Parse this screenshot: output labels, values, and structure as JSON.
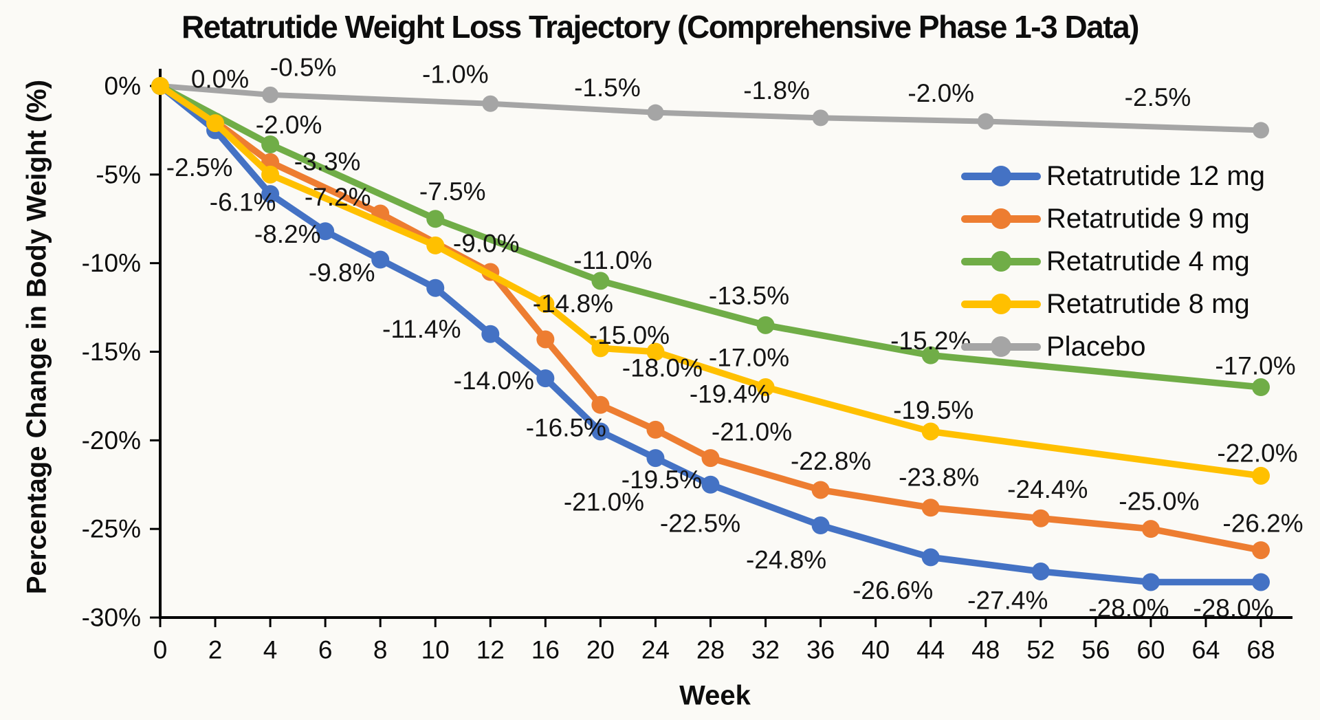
{
  "title": "Retatrutide Weight Loss Trajectory (Comprehensive Phase 1-3 Data)",
  "x_axis": {
    "label": "Week",
    "ticks": [
      "0",
      "2",
      "4",
      "6",
      "8",
      "10",
      "12",
      "16",
      "20",
      "24",
      "28",
      "32",
      "36",
      "40",
      "44",
      "48",
      "52",
      "56",
      "60",
      "64",
      "68"
    ]
  },
  "y_axis": {
    "label": "Percentage Change in Body Weight (%)",
    "ticks": [
      "0%",
      "-5%",
      "-10%",
      "-15%",
      "-20%",
      "-25%",
      "-30%"
    ]
  },
  "legend": {
    "position": "right-upper",
    "items": [
      {
        "label": "Retatrutide 12 mg",
        "color": "#4472C4"
      },
      {
        "label": "Retatrutide 9 mg",
        "color": "#ED7D31"
      },
      {
        "label": "Retatrutide 4 mg",
        "color": "#70AD47"
      },
      {
        "label": "Retatrutide 8 mg",
        "color": "#FFC000"
      },
      {
        "label": "Placebo",
        "color": "#A5A5A5"
      }
    ]
  },
  "chart_data": {
    "type": "line",
    "x_categories": [
      0,
      2,
      4,
      6,
      8,
      10,
      12,
      16,
      20,
      24,
      28,
      32,
      36,
      40,
      44,
      48,
      52,
      56,
      60,
      64,
      68
    ],
    "xlabel": "Week",
    "ylabel": "Percentage Change in Body Weight (%)",
    "ylim": [
      -30,
      0
    ],
    "grid": false,
    "series": [
      {
        "name": "Retatrutide 12 mg",
        "color": "#4472C4",
        "points": [
          {
            "week": 0,
            "value": 0.0
          },
          {
            "week": 2,
            "value": -2.5,
            "label": "-2.5%",
            "offset": [
              -23,
              54
            ]
          },
          {
            "week": 4,
            "value": -6.1,
            "label": "-6.1%",
            "offset": [
              -40,
              12
            ]
          },
          {
            "week": 6,
            "value": -8.2,
            "label": "-8.2%",
            "offset": [
              -55,
              4
            ]
          },
          {
            "week": 8,
            "value": -9.8,
            "label": "-9.8%",
            "offset": [
              -56,
              19
            ]
          },
          {
            "week": 10,
            "value": -11.4,
            "label": "-11.4%",
            "offset": [
              -20,
              60
            ]
          },
          {
            "week": 12,
            "value": -14.0,
            "label": "-14.0%",
            "offset": [
              5,
              68
            ]
          },
          {
            "week": 16,
            "value": -16.5,
            "label": "-16.5%",
            "offset": [
              30,
              72
            ]
          },
          {
            "week": 20,
            "value": -19.5,
            "label": "-19.5%",
            "offset": [
              89,
              70
            ]
          },
          {
            "week": 24,
            "value": -21.0,
            "label": "-21.0%",
            "offset": [
              -75,
              64
            ]
          },
          {
            "week": 28,
            "value": -22.5,
            "label": "-22.5%",
            "offset": [
              -15,
              56
            ]
          },
          {
            "week": 36,
            "value": -24.8,
            "label": "-24.8%",
            "offset": [
              -50,
              50
            ]
          },
          {
            "week": 44,
            "value": -26.6,
            "label": "-26.6%",
            "offset": [
              -55,
              48
            ]
          },
          {
            "week": 52,
            "value": -27.4,
            "label": "-27.4%",
            "offset": [
              -48,
              42
            ]
          },
          {
            "week": 60,
            "value": -28.0,
            "label": "-28.0%",
            "offset": [
              -32,
              38
            ]
          },
          {
            "week": 68,
            "value": -28.0,
            "label": "-28.0%",
            "offset": [
              -40,
              38
            ]
          }
        ]
      },
      {
        "name": "Retatrutide 9 mg",
        "color": "#ED7D31",
        "points": [
          {
            "week": 0,
            "value": 0.0
          },
          {
            "week": 2,
            "value": -2.0,
            "label": "-2.0%",
            "offset": [
              107,
              5
            ]
          },
          {
            "week": 4,
            "value": -4.3
          },
          {
            "week": 8,
            "value": -7.2,
            "label": "-7.2%",
            "offset": [
              -62,
              -24
            ]
          },
          {
            "week": 12,
            "value": -10.5
          },
          {
            "week": 16,
            "value": -14.3
          },
          {
            "week": 20,
            "value": -18.0,
            "label": "-18.0%",
            "offset": [
              90,
              -54
            ]
          },
          {
            "week": 24,
            "value": -19.4,
            "label": "-19.4%",
            "offset": [
              108,
              -52
            ]
          },
          {
            "week": 28,
            "value": -21.0,
            "label": "-21.0%",
            "offset": [
              60,
              -38
            ]
          },
          {
            "week": 36,
            "value": -22.8,
            "label": "-22.8%",
            "offset": [
              15,
              -42
            ]
          },
          {
            "week": 44,
            "value": -23.8,
            "label": "-23.8%",
            "offset": [
              12,
              -44
            ]
          },
          {
            "week": 52,
            "value": -24.4,
            "label": "-24.4%",
            "offset": [
              10,
              -42
            ]
          },
          {
            "week": 60,
            "value": -25.0,
            "label": "-25.0%",
            "offset": [
              12,
              -40
            ]
          },
          {
            "week": 68,
            "value": -26.2,
            "label": "-26.2%",
            "offset": [
              3,
              -39
            ]
          }
        ]
      },
      {
        "name": "Retatrutide 4 mg",
        "color": "#70AD47",
        "points": [
          {
            "week": 0,
            "value": 0.0
          },
          {
            "week": 4,
            "value": -3.3,
            "label": "-3.3%",
            "offset": [
              83,
              25
            ]
          },
          {
            "week": 10,
            "value": -7.5,
            "label": "-7.5%",
            "offset": [
              25,
              -40
            ]
          },
          {
            "week": 20,
            "value": -11.0,
            "label": "-11.0%",
            "offset": [
              18,
              -30
            ]
          },
          {
            "week": 32,
            "value": -13.5,
            "label": "-13.5%",
            "offset": [
              -24,
              -43
            ]
          },
          {
            "week": 44,
            "value": -15.2,
            "label": "-15.2%",
            "offset": [
              0,
              -21
            ]
          },
          {
            "week": 68,
            "value": -17.0,
            "label": "-17.0%",
            "offset": [
              -8,
              -31
            ]
          }
        ]
      },
      {
        "name": "Retatrutide 8 mg",
        "color": "#FFC000",
        "points": [
          {
            "week": 0,
            "value": 0.0
          },
          {
            "week": 2,
            "value": -2.1
          },
          {
            "week": 4,
            "value": -5.0
          },
          {
            "week": 10,
            "value": -9.0,
            "label": "-9.0%",
            "offset": [
              74,
              -3
            ]
          },
          {
            "week": 16,
            "value": -12.3
          },
          {
            "week": 20,
            "value": -14.8,
            "label": "-14.8%",
            "offset": [
              -40,
              -65
            ]
          },
          {
            "week": 24,
            "value": -15.0,
            "label": "-15.0%",
            "offset": [
              -38,
              -24
            ]
          },
          {
            "week": 32,
            "value": -17.0,
            "label": "-17.0%",
            "offset": [
              -24,
              -43
            ]
          },
          {
            "week": 44,
            "value": -19.5,
            "label": "-19.5%",
            "offset": [
              4,
              -31
            ]
          },
          {
            "week": 68,
            "value": -22.0,
            "label": "-22.0%",
            "offset": [
              -5,
              -33
            ]
          }
        ]
      },
      {
        "name": "Placebo",
        "color": "#A5A5A5",
        "points": [
          {
            "week": 0,
            "value": 0.0,
            "label": "0.0%",
            "offset": [
              87,
              -10
            ]
          },
          {
            "week": 4,
            "value": -0.5,
            "label": "-0.5%",
            "offset": [
              48,
              -40
            ]
          },
          {
            "week": 12,
            "value": -1.0,
            "label": "-1.0%",
            "offset": [
              -51,
              -43
            ]
          },
          {
            "week": 24,
            "value": -1.5,
            "label": "-1.5%",
            "offset": [
              -70,
              -36
            ]
          },
          {
            "week": 36,
            "value": -1.8,
            "label": "-1.8%",
            "offset": [
              -64,
              -40
            ]
          },
          {
            "week": 48,
            "value": -2.0,
            "label": "-2.0%",
            "offset": [
              -65,
              -41
            ]
          },
          {
            "week": 68,
            "value": -2.5,
            "label": "-2.5%",
            "offset": [
              -150,
              -48
            ]
          }
        ]
      }
    ]
  }
}
